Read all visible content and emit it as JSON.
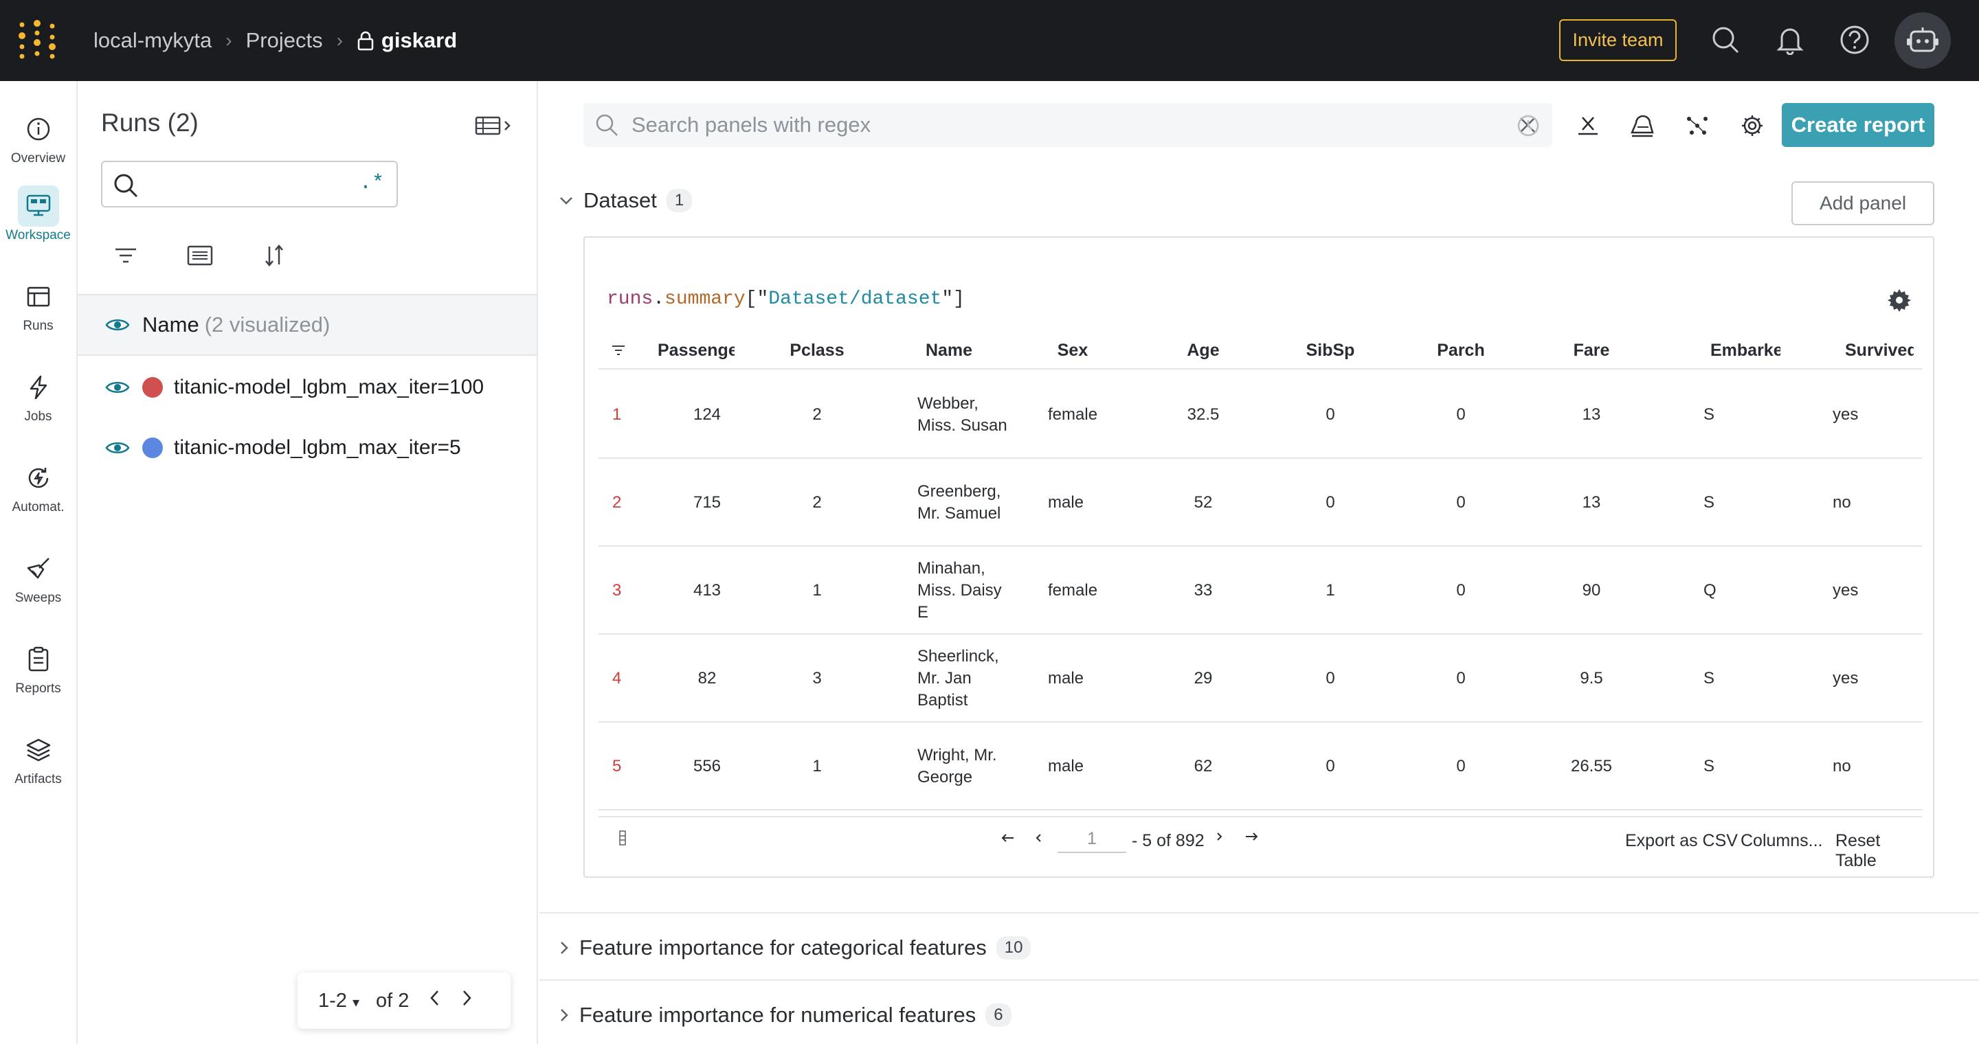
{
  "topnav": {
    "breadcrumb": [
      "local-mykyta",
      "Projects",
      "giskard"
    ],
    "invite_label": "Invite team",
    "icons": [
      "search-icon",
      "bell-icon",
      "help-icon",
      "robot-avatar-icon"
    ]
  },
  "rail": {
    "items": [
      {
        "label": "Overview",
        "icon": "info-icon"
      },
      {
        "label": "Workspace",
        "icon": "workspace-icon",
        "active": true
      },
      {
        "label": "Runs",
        "icon": "table-icon"
      },
      {
        "label": "Jobs",
        "icon": "lightning-icon"
      },
      {
        "label": "Automat.",
        "icon": "automation-icon"
      },
      {
        "label": "Sweeps",
        "icon": "broom-icon"
      },
      {
        "label": "Reports",
        "icon": "clipboard-icon"
      },
      {
        "label": "Artifacts",
        "icon": "layers-icon"
      }
    ]
  },
  "runs_panel": {
    "title": "Runs (2)",
    "search_value": "",
    "regex_glyph": ".*",
    "name_header": "Name",
    "visualized": "(2 visualized)",
    "runs": [
      {
        "name": "titanic-model_lgbm_max_iter=100",
        "color": "#d0504f"
      },
      {
        "name": "titanic-model_lgbm_max_iter=5",
        "color": "#5b87e0"
      }
    ],
    "pager": {
      "range": "1-2",
      "of": "of 2"
    }
  },
  "main": {
    "search_placeholder": "Search panels with regex",
    "create_report": "Create report",
    "add_panel": "Add panel",
    "sections": [
      {
        "title": "Dataset",
        "count": "1",
        "expanded": true
      },
      {
        "title": "Feature importance for categorical features",
        "count": "10",
        "expanded": false
      },
      {
        "title": "Feature importance for numerical features",
        "count": "6",
        "expanded": false
      }
    ],
    "expression": {
      "p1": "runs",
      "p2": ".",
      "p3": "summary",
      "p4": "[\"",
      "p5": "Dataset/dataset",
      "p6": "\"]"
    },
    "table": {
      "columns": [
        "Passenger",
        "Pclass",
        "Name",
        "Sex",
        "Age",
        "SibSp",
        "Parch",
        "Fare",
        "Embarke",
        "Survived"
      ],
      "rows": [
        {
          "idx": "1",
          "passenger": "124",
          "pclass": "2",
          "name": [
            "Webber,",
            "Miss. Susan"
          ],
          "sex": "female",
          "age": "32.5",
          "sibsp": "0",
          "parch": "0",
          "fare": "13",
          "embarked": "S",
          "survived": "yes"
        },
        {
          "idx": "2",
          "passenger": "715",
          "pclass": "2",
          "name": [
            "Greenberg,",
            "Mr. Samuel"
          ],
          "sex": "male",
          "age": "52",
          "sibsp": "0",
          "parch": "0",
          "fare": "13",
          "embarked": "S",
          "survived": "no"
        },
        {
          "idx": "3",
          "passenger": "413",
          "pclass": "1",
          "name": [
            "Minahan,",
            "Miss. Daisy",
            "E"
          ],
          "sex": "female",
          "age": "33",
          "sibsp": "1",
          "parch": "0",
          "fare": "90",
          "embarked": "Q",
          "survived": "yes"
        },
        {
          "idx": "4",
          "passenger": "82",
          "pclass": "3",
          "name": [
            "Sheerlinck,",
            "Mr. Jan",
            "Baptist"
          ],
          "sex": "male",
          "age": "29",
          "sibsp": "0",
          "parch": "0",
          "fare": "9.5",
          "embarked": "S",
          "survived": "yes"
        },
        {
          "idx": "5",
          "passenger": "556",
          "pclass": "1",
          "name": [
            "Wright, Mr.",
            "George"
          ],
          "sex": "male",
          "age": "62",
          "sibsp": "0",
          "parch": "0",
          "fare": "26.55",
          "embarked": "S",
          "survived": "no"
        }
      ],
      "footer": {
        "page": "1",
        "range": "- 5 of 892",
        "export": "Export as CSV",
        "columns": "Columns...",
        "reset": "Reset Table"
      }
    }
  }
}
